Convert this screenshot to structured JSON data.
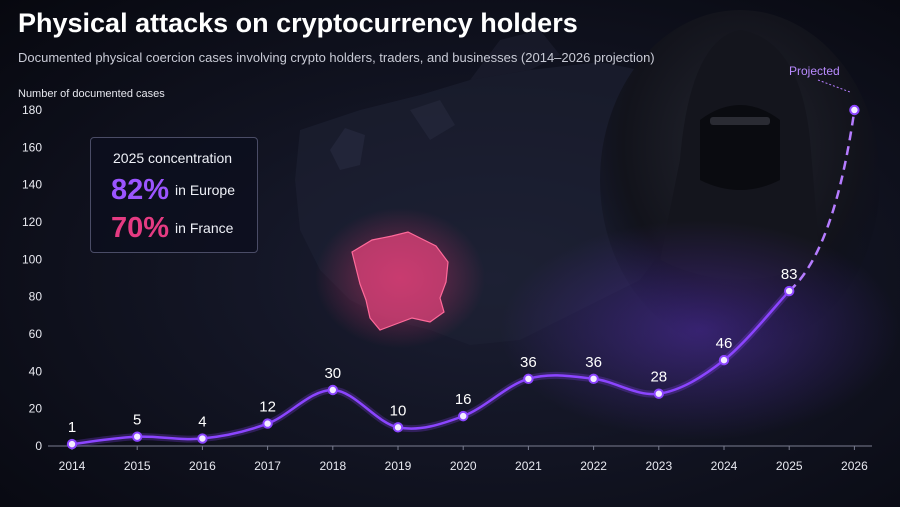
{
  "header": {
    "title": "Physical attacks on cryptocurrency holders",
    "subtitle": "Documented physical coercion cases involving crypto holders, traders, and businesses (2014–2026 projection)"
  },
  "callout": {
    "title": "2025 concentration",
    "europe_pct": "82%",
    "europe_label": "in Europe",
    "france_pct": "70%",
    "france_label": "in France"
  },
  "projected_label": "Projected",
  "colors": {
    "line": "#8b45ff",
    "projection": "#b57cff",
    "europe": "#9b55ff",
    "france": "#e53b82",
    "background": "#0b0d1a"
  },
  "chart_data": {
    "type": "line",
    "title": "Physical attacks on cryptocurrency holders",
    "ylabel": "Number of documented cases",
    "xlabel": "",
    "x": [
      "2014",
      "2015",
      "2016",
      "2017",
      "2018",
      "2019",
      "2020",
      "2021",
      "2022",
      "2023",
      "2024",
      "2025",
      "2026"
    ],
    "values": [
      1,
      5,
      4,
      12,
      30,
      10,
      16,
      36,
      36,
      28,
      46,
      83,
      180
    ],
    "data_labels": [
      "1",
      "5",
      "4",
      "12",
      "30",
      "10",
      "16",
      "36",
      "36",
      "28",
      "46",
      "83",
      ""
    ],
    "projected_from_index": 11,
    "ylim": [
      0,
      180
    ],
    "yticks": [
      0,
      20,
      40,
      60,
      80,
      100,
      120,
      140,
      160,
      180
    ],
    "grid": false
  }
}
